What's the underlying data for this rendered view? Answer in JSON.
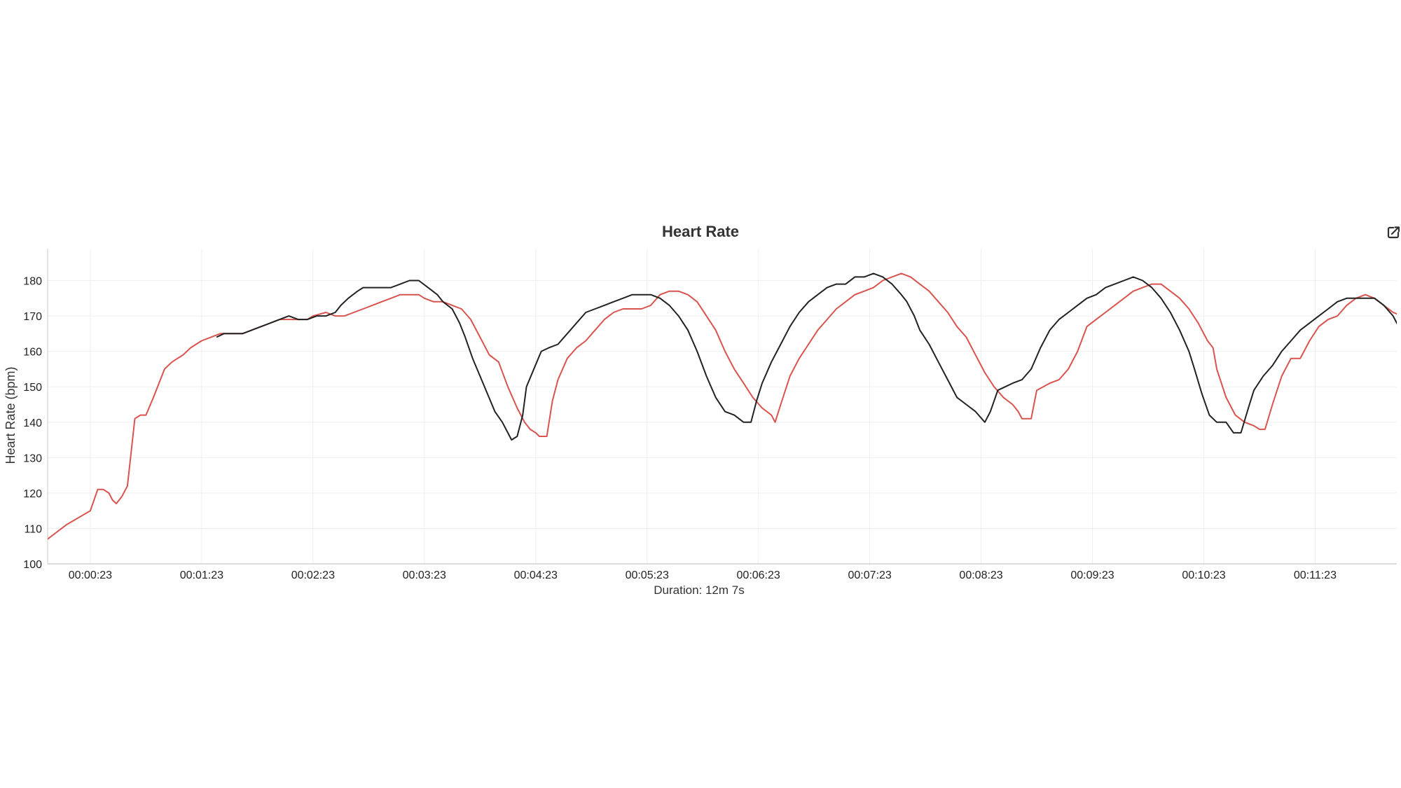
{
  "chart_data": {
    "type": "line",
    "title": "Heart Rate",
    "ylabel": "Heart Rate (bpm)",
    "xlabel": "Duration: 12m 7s",
    "ylim": [
      100,
      189
    ],
    "xlim": [
      0,
      727
    ],
    "yticks": [
      100,
      110,
      120,
      130,
      140,
      150,
      160,
      170,
      180
    ],
    "xticks": [
      {
        "t": 23,
        "label": "00:00:23"
      },
      {
        "t": 83,
        "label": "00:01:23"
      },
      {
        "t": 143,
        "label": "00:02:23"
      },
      {
        "t": 203,
        "label": "00:03:23"
      },
      {
        "t": 263,
        "label": "00:04:23"
      },
      {
        "t": 323,
        "label": "00:05:23"
      },
      {
        "t": 383,
        "label": "00:06:23"
      },
      {
        "t": 443,
        "label": "00:07:23"
      },
      {
        "t": 503,
        "label": "00:08:23"
      },
      {
        "t": 563,
        "label": "00:09:23"
      },
      {
        "t": 623,
        "label": "00:10:23"
      },
      {
        "t": 683,
        "label": "00:11:23"
      }
    ],
    "grid": true,
    "series": [
      {
        "color": "#d9534f",
        "points": [
          [
            0,
            107
          ],
          [
            10,
            111
          ],
          [
            23,
            115
          ],
          [
            27,
            121
          ],
          [
            30,
            121
          ],
          [
            33,
            120
          ],
          [
            35,
            118
          ],
          [
            37,
            117
          ],
          [
            40,
            119
          ],
          [
            43,
            122
          ],
          [
            47,
            141
          ],
          [
            50,
            142
          ],
          [
            53,
            142
          ],
          [
            57,
            147
          ],
          [
            60,
            151
          ],
          [
            63,
            155
          ],
          [
            67,
            157
          ],
          [
            70,
            158
          ],
          [
            73,
            159
          ],
          [
            77,
            161
          ],
          [
            80,
            162
          ],
          [
            83,
            163
          ],
          [
            88,
            164
          ],
          [
            93,
            165
          ],
          [
            100,
            165
          ],
          [
            105,
            165
          ],
          [
            110,
            166
          ],
          [
            115,
            167
          ],
          [
            120,
            168
          ],
          [
            125,
            169
          ],
          [
            130,
            169
          ],
          [
            140,
            169
          ],
          [
            143,
            170
          ],
          [
            150,
            171
          ],
          [
            155,
            170
          ],
          [
            160,
            170
          ],
          [
            165,
            171
          ],
          [
            170,
            172
          ],
          [
            175,
            173
          ],
          [
            180,
            174
          ],
          [
            185,
            175
          ],
          [
            190,
            176
          ],
          [
            195,
            176
          ],
          [
            200,
            176
          ],
          [
            203,
            175
          ],
          [
            208,
            174
          ],
          [
            213,
            174
          ],
          [
            218,
            173
          ],
          [
            223,
            172
          ],
          [
            228,
            169
          ],
          [
            233,
            164
          ],
          [
            238,
            159
          ],
          [
            243,
            157
          ],
          [
            248,
            150
          ],
          [
            253,
            144
          ],
          [
            257,
            140
          ],
          [
            260,
            138
          ],
          [
            263,
            137
          ],
          [
            265,
            136
          ],
          [
            269,
            136
          ],
          [
            272,
            146
          ],
          [
            275,
            152
          ],
          [
            280,
            158
          ],
          [
            285,
            161
          ],
          [
            290,
            163
          ],
          [
            295,
            166
          ],
          [
            300,
            169
          ],
          [
            305,
            171
          ],
          [
            310,
            172
          ],
          [
            315,
            172
          ],
          [
            320,
            172
          ],
          [
            325,
            173
          ],
          [
            330,
            176
          ],
          [
            335,
            177
          ],
          [
            340,
            177
          ],
          [
            345,
            176
          ],
          [
            350,
            174
          ],
          [
            355,
            170
          ],
          [
            360,
            166
          ],
          [
            365,
            160
          ],
          [
            370,
            155
          ],
          [
            375,
            151
          ],
          [
            380,
            147
          ],
          [
            385,
            144
          ],
          [
            390,
            142
          ],
          [
            392,
            140
          ],
          [
            395,
            145
          ],
          [
            400,
            153
          ],
          [
            405,
            158
          ],
          [
            410,
            162
          ],
          [
            415,
            166
          ],
          [
            420,
            169
          ],
          [
            425,
            172
          ],
          [
            430,
            174
          ],
          [
            435,
            176
          ],
          [
            440,
            177
          ],
          [
            445,
            178
          ],
          [
            450,
            180
          ],
          [
            455,
            181
          ],
          [
            460,
            182
          ],
          [
            465,
            181
          ],
          [
            470,
            179
          ],
          [
            475,
            177
          ],
          [
            480,
            174
          ],
          [
            485,
            171
          ],
          [
            490,
            167
          ],
          [
            495,
            164
          ],
          [
            500,
            159
          ],
          [
            505,
            154
          ],
          [
            510,
            150
          ],
          [
            515,
            147
          ],
          [
            520,
            145
          ],
          [
            523,
            143
          ],
          [
            525,
            141
          ],
          [
            530,
            141
          ],
          [
            533,
            149
          ],
          [
            540,
            151
          ],
          [
            545,
            152
          ],
          [
            550,
            155
          ],
          [
            555,
            160
          ],
          [
            560,
            167
          ],
          [
            565,
            169
          ],
          [
            570,
            171
          ],
          [
            575,
            173
          ],
          [
            580,
            175
          ],
          [
            585,
            177
          ],
          [
            590,
            178
          ],
          [
            595,
            179
          ],
          [
            600,
            179
          ],
          [
            605,
            177
          ],
          [
            610,
            175
          ],
          [
            615,
            172
          ],
          [
            620,
            168
          ],
          [
            625,
            163
          ],
          [
            628,
            161
          ],
          [
            630,
            155
          ],
          [
            635,
            147
          ],
          [
            640,
            142
          ],
          [
            645,
            140
          ],
          [
            650,
            139
          ],
          [
            653,
            138
          ],
          [
            656,
            138
          ],
          [
            660,
            145
          ],
          [
            665,
            153
          ],
          [
            670,
            158
          ],
          [
            675,
            158
          ],
          [
            680,
            163
          ],
          [
            685,
            167
          ],
          [
            690,
            169
          ],
          [
            695,
            170
          ],
          [
            700,
            173
          ],
          [
            705,
            175
          ],
          [
            710,
            176
          ],
          [
            715,
            175
          ],
          [
            720,
            173
          ],
          [
            725,
            171
          ],
          [
            730,
            170
          ],
          [
            733,
            165
          ],
          [
            736,
            160
          ],
          [
            740,
            160
          ]
        ]
      },
      {
        "color": "#222222",
        "points": [
          [
            91,
            164
          ],
          [
            95,
            165
          ],
          [
            100,
            165
          ],
          [
            105,
            165
          ],
          [
            110,
            166
          ],
          [
            115,
            167
          ],
          [
            120,
            168
          ],
          [
            125,
            169
          ],
          [
            130,
            170
          ],
          [
            135,
            169
          ],
          [
            140,
            169
          ],
          [
            145,
            170
          ],
          [
            150,
            170
          ],
          [
            155,
            171
          ],
          [
            158,
            173
          ],
          [
            162,
            175
          ],
          [
            167,
            177
          ],
          [
            170,
            178
          ],
          [
            175,
            178
          ],
          [
            180,
            178
          ],
          [
            185,
            178
          ],
          [
            190,
            179
          ],
          [
            195,
            180
          ],
          [
            200,
            180
          ],
          [
            205,
            178
          ],
          [
            210,
            176
          ],
          [
            213,
            174
          ],
          [
            218,
            172
          ],
          [
            222,
            168
          ],
          [
            225,
            164
          ],
          [
            229,
            158
          ],
          [
            233,
            153
          ],
          [
            237,
            148
          ],
          [
            241,
            143
          ],
          [
            245,
            140
          ],
          [
            248,
            137
          ],
          [
            250,
            135
          ],
          [
            253,
            136
          ],
          [
            256,
            142
          ],
          [
            258,
            150
          ],
          [
            262,
            155
          ],
          [
            266,
            160
          ],
          [
            270,
            161
          ],
          [
            275,
            162
          ],
          [
            280,
            165
          ],
          [
            285,
            168
          ],
          [
            290,
            171
          ],
          [
            295,
            172
          ],
          [
            300,
            173
          ],
          [
            305,
            174
          ],
          [
            310,
            175
          ],
          [
            315,
            176
          ],
          [
            320,
            176
          ],
          [
            325,
            176
          ],
          [
            330,
            175
          ],
          [
            335,
            173
          ],
          [
            340,
            170
          ],
          [
            345,
            166
          ],
          [
            350,
            160
          ],
          [
            355,
            153
          ],
          [
            360,
            147
          ],
          [
            365,
            143
          ],
          [
            370,
            142
          ],
          [
            375,
            140
          ],
          [
            379,
            140
          ],
          [
            382,
            146
          ],
          [
            385,
            151
          ],
          [
            390,
            157
          ],
          [
            395,
            162
          ],
          [
            400,
            167
          ],
          [
            405,
            171
          ],
          [
            410,
            174
          ],
          [
            415,
            176
          ],
          [
            420,
            178
          ],
          [
            425,
            179
          ],
          [
            430,
            179
          ],
          [
            435,
            181
          ],
          [
            440,
            181
          ],
          [
            445,
            182
          ],
          [
            450,
            181
          ],
          [
            455,
            179
          ],
          [
            460,
            176
          ],
          [
            463,
            174
          ],
          [
            467,
            170
          ],
          [
            470,
            166
          ],
          [
            475,
            162
          ],
          [
            480,
            157
          ],
          [
            485,
            152
          ],
          [
            490,
            147
          ],
          [
            495,
            145
          ],
          [
            500,
            143
          ],
          [
            505,
            140
          ],
          [
            508,
            143
          ],
          [
            512,
            149
          ],
          [
            516,
            150
          ],
          [
            520,
            151
          ],
          [
            525,
            152
          ],
          [
            530,
            155
          ],
          [
            535,
            161
          ],
          [
            540,
            166
          ],
          [
            545,
            169
          ],
          [
            550,
            171
          ],
          [
            555,
            173
          ],
          [
            560,
            175
          ],
          [
            565,
            176
          ],
          [
            570,
            178
          ],
          [
            575,
            179
          ],
          [
            580,
            180
          ],
          [
            585,
            181
          ],
          [
            590,
            180
          ],
          [
            595,
            178
          ],
          [
            600,
            175
          ],
          [
            605,
            171
          ],
          [
            610,
            166
          ],
          [
            615,
            160
          ],
          [
            618,
            155
          ],
          [
            622,
            148
          ],
          [
            626,
            142
          ],
          [
            630,
            140
          ],
          [
            635,
            140
          ],
          [
            639,
            137
          ],
          [
            643,
            137
          ],
          [
            647,
            144
          ],
          [
            650,
            149
          ],
          [
            655,
            153
          ],
          [
            660,
            156
          ],
          [
            665,
            160
          ],
          [
            670,
            163
          ],
          [
            675,
            166
          ],
          [
            680,
            168
          ],
          [
            685,
            170
          ],
          [
            690,
            172
          ],
          [
            695,
            174
          ],
          [
            700,
            175
          ],
          [
            705,
            175
          ],
          [
            710,
            175
          ],
          [
            715,
            175
          ],
          [
            720,
            173
          ],
          [
            725,
            170
          ],
          [
            729,
            166
          ],
          [
            733,
            160
          ]
        ]
      }
    ]
  }
}
